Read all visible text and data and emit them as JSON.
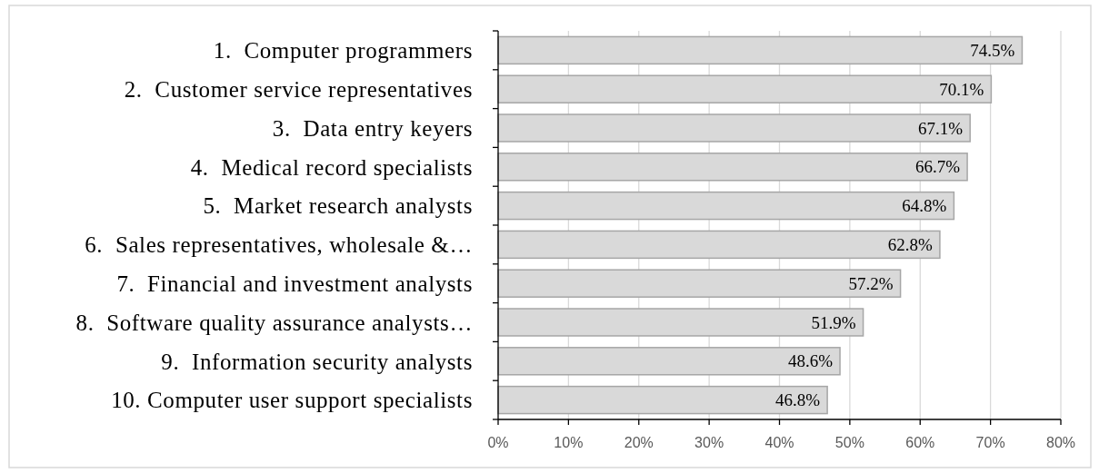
{
  "chart_data": {
    "type": "bar",
    "orientation": "horizontal",
    "categories": [
      "1.  Computer programmers",
      "2.  Customer service representatives",
      "3.  Data entry keyers",
      "4.  Medical record specialists",
      "5.  Market research analysts",
      "6.  Sales representatives, wholesale &…",
      "7.  Financial and investment analysts",
      "8.  Software quality assurance analysts…",
      "9.  Information security analysts",
      "10. Computer user support specialists"
    ],
    "values": [
      74.5,
      70.1,
      67.1,
      66.7,
      64.8,
      62.8,
      57.2,
      51.9,
      48.6,
      46.8
    ],
    "value_labels": [
      "74.5%",
      "70.1%",
      "67.1%",
      "66.7%",
      "64.8%",
      "62.8%",
      "57.2%",
      "51.9%",
      "48.6%",
      "46.8%"
    ],
    "color": "#d9d9d9",
    "xlim": [
      0,
      80
    ],
    "xticks": [
      {
        "value": 0,
        "label": "0%"
      },
      {
        "value": 10,
        "label": "10%"
      },
      {
        "value": 20,
        "label": "20%"
      },
      {
        "value": 30,
        "label": "30%"
      },
      {
        "value": 40,
        "label": "40%"
      },
      {
        "value": 50,
        "label": "50%"
      },
      {
        "value": 60,
        "label": "60%"
      },
      {
        "value": 70,
        "label": "70%"
      },
      {
        "value": 80,
        "label": "80%"
      }
    ],
    "grid": "x"
  }
}
